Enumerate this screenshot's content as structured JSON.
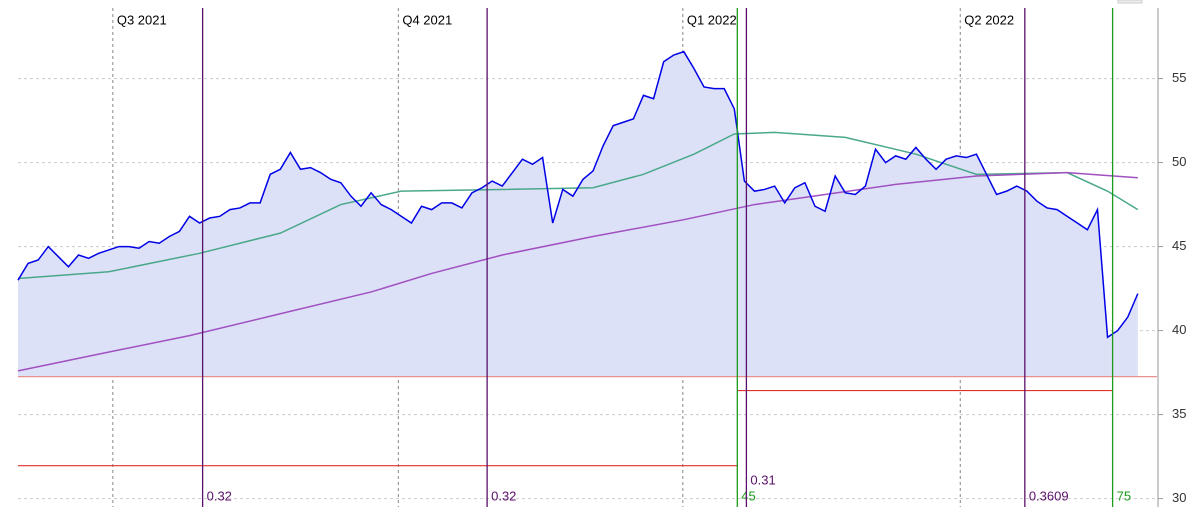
{
  "chart_data": {
    "type": "line",
    "xlim": [
      0,
      113
    ],
    "ylim": [
      29.5,
      59.2
    ],
    "yticks": [
      30,
      35,
      40,
      45,
      50,
      55
    ],
    "grid": true,
    "quarters": [
      {
        "label": "Q3 2021",
        "x": 9.4
      },
      {
        "label": "Q4 2021",
        "x": 37.7
      },
      {
        "label": "Q1 2022",
        "x": 65.9
      },
      {
        "label": "Q2 2022",
        "x": 93.4
      }
    ],
    "series": [
      {
        "color": "#0000e6",
        "fill": "#dde1f7",
        "values": [
          43.0,
          44.0,
          44.2,
          45.0,
          44.4,
          43.8,
          44.5,
          44.3,
          44.6,
          44.8,
          45.0,
          45.0,
          44.9,
          45.3,
          45.2,
          45.6,
          45.9,
          46.8,
          46.4,
          46.7,
          46.8,
          47.2,
          47.3,
          47.6,
          47.6,
          49.3,
          49.6,
          50.6,
          49.6,
          49.7,
          49.4,
          49.0,
          48.8,
          48.0,
          47.4,
          48.2,
          47.5,
          47.2,
          46.8,
          46.4,
          47.4,
          47.2,
          47.6,
          47.6,
          47.3,
          48.2,
          48.5,
          48.9,
          48.6,
          49.4,
          50.2,
          49.9,
          50.3,
          46.4,
          48.4,
          48.0,
          49.0,
          49.5,
          51.0,
          52.2,
          52.4,
          52.6,
          54.0,
          53.8,
          56.0,
          56.4,
          56.6,
          55.6,
          54.5,
          54.4,
          54.4,
          53.2,
          48.9,
          48.3,
          48.4,
          48.6,
          47.6,
          48.5,
          48.8,
          47.4,
          47.1,
          49.2,
          48.2,
          48.1,
          48.6,
          50.8,
          50.0,
          50.4,
          50.2,
          50.9,
          50.2,
          49.6,
          50.2,
          50.4,
          50.3,
          50.5,
          49.3,
          48.1,
          48.3,
          48.6,
          48.3,
          47.7,
          47.3,
          47.2,
          46.8,
          46.4,
          46.0,
          47.2,
          39.6,
          40.0,
          40.8,
          42.2
        ]
      },
      {
        "color": "#4aa88a",
        "x": [
          0,
          9,
          18,
          26,
          32,
          38,
          48,
          57,
          62,
          67,
          71,
          75,
          82,
          89,
          95,
          104,
          108,
          111
        ],
        "values": [
          43.1,
          43.5,
          44.6,
          45.8,
          47.5,
          48.3,
          48.4,
          48.5,
          49.3,
          50.5,
          51.7,
          51.8,
          51.5,
          50.5,
          49.3,
          49.4,
          48.3,
          47.2
        ]
      },
      {
        "color": "#a050c0",
        "x": [
          0,
          8,
          17,
          26,
          35,
          41,
          48,
          57,
          66,
          73,
          80,
          87,
          95,
          104,
          111
        ],
        "values": [
          37.6,
          38.6,
          39.7,
          41.0,
          42.3,
          43.4,
          44.5,
          45.6,
          46.6,
          47.5,
          48.1,
          48.7,
          49.2,
          49.4,
          49.1
        ]
      }
    ],
    "baseline": {
      "value": 37.26,
      "color": "#e89090",
      "x": [
        0,
        112.9
      ]
    },
    "levels": [
      {
        "value": 31.96,
        "color": "#e03030",
        "x": [
          0,
          71.3
        ]
      },
      {
        "value": 36.43,
        "color": "#e03030",
        "x": [
          71.3,
          108.5
        ]
      }
    ],
    "events": [
      {
        "x": 18.3,
        "label": 0.32,
        "color": "#5a0f6a"
      },
      {
        "x": 46.5,
        "label": 0.32,
        "color": "#5a0f6a"
      },
      {
        "x": 71.3,
        "label": 45,
        "color": "#1a9a1a"
      },
      {
        "x": 72.2,
        "label": 0.31,
        "color": "#5a0f6a"
      },
      {
        "x": 99.8,
        "label": 0.3609,
        "color": "#5a0f6a"
      },
      {
        "x": 108.5,
        "label": 75,
        "color": "#1a9a1a"
      }
    ]
  }
}
